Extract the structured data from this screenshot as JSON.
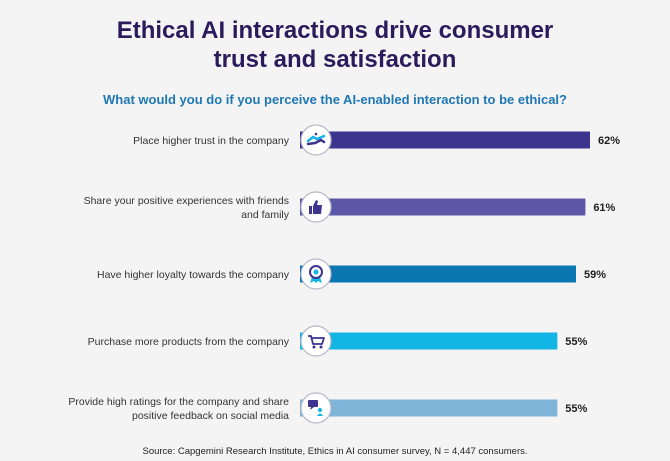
{
  "title_lines": [
    "Ethical AI interactions drive consumer",
    "trust and satisfaction"
  ],
  "subtitle": "What would you do if you perceive the AI-enabled interaction to be ethical?",
  "source": "Source: Capgemini Research Institute, Ethics in AI consumer survey, N = 4,447 consumers.",
  "chart_data": {
    "type": "bar",
    "orientation": "horizontal",
    "title": "Ethical AI interactions drive consumer trust and satisfaction",
    "subtitle": "What would you do if you perceive the AI-enabled interaction to be ethical?",
    "xlabel": "",
    "ylabel": "",
    "xlim": [
      0,
      100
    ],
    "categories": [
      [
        "Place higher trust in the company"
      ],
      [
        "Share your positive experiences with friends",
        "and family"
      ],
      [
        "Have higher loyalty towards the company"
      ],
      [
        "Purchase more products from the company"
      ],
      [
        "Provide high ratings for the company and share",
        "positive feedback on social media"
      ]
    ],
    "values": [
      62,
      61,
      59,
      55,
      55
    ],
    "value_labels": [
      "62%",
      "61%",
      "59%",
      "55%",
      "55%"
    ],
    "icons": [
      "handshake-icon",
      "thumbs-up-icon",
      "award-ribbon-icon",
      "shopping-cart-icon",
      "chat-people-icon"
    ],
    "colors": [
      "#3d3490",
      "#5b57a6",
      "#0a77b3",
      "#12b5e3",
      "#7fb4d9"
    ]
  }
}
